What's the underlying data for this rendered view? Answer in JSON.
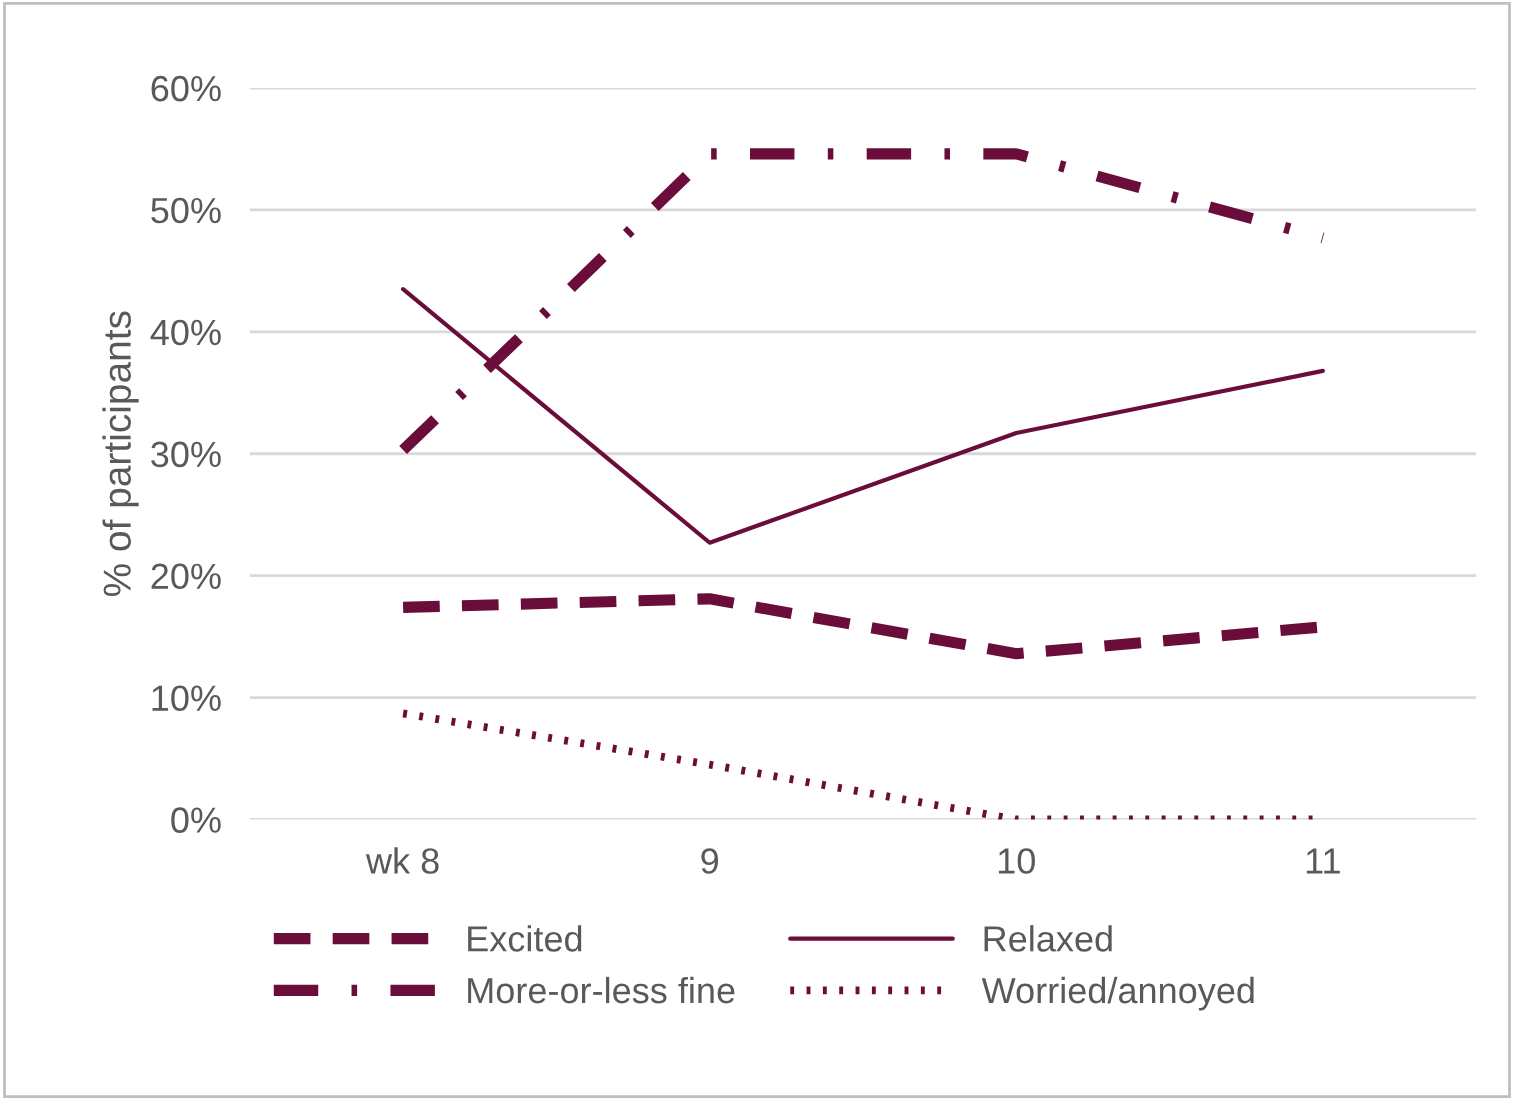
{
  "chart_data": {
    "type": "line",
    "ylabel": "% of participants",
    "categories": [
      "wk 8",
      "9",
      "10",
      "11"
    ],
    "series": [
      {
        "name": "Excited",
        "color": "#6b0d3a",
        "line_style": "dashed",
        "values": [
          17.4,
          18.1,
          13.6,
          15.8
        ]
      },
      {
        "name": "Relaxed",
        "color": "#6b0d3a",
        "line_style": "solid",
        "values": [
          43.5,
          22.7,
          31.7,
          36.8
        ]
      },
      {
        "name": "More-or-less fine",
        "color": "#6b0d3a",
        "line_style": "dashdot",
        "values": [
          30.3,
          54.6,
          54.6,
          47.7
        ]
      },
      {
        "name": "Worried/annoyed",
        "color": "#6b0d3a",
        "line_style": "dotted",
        "values": [
          8.7,
          4.5,
          0,
          0
        ]
      }
    ],
    "ylim": [
      0,
      60
    ],
    "yticks": [
      {
        "value": 0,
        "label": "0%"
      },
      {
        "value": 10,
        "label": "10%"
      },
      {
        "value": 20,
        "label": "20%"
      },
      {
        "value": 30,
        "label": "30%"
      },
      {
        "value": 40,
        "label": "40%"
      },
      {
        "value": 50,
        "label": "50%"
      },
      {
        "value": 60,
        "label": "60%"
      }
    ],
    "grid": "y",
    "legend": "bottom",
    "marker": "none"
  }
}
